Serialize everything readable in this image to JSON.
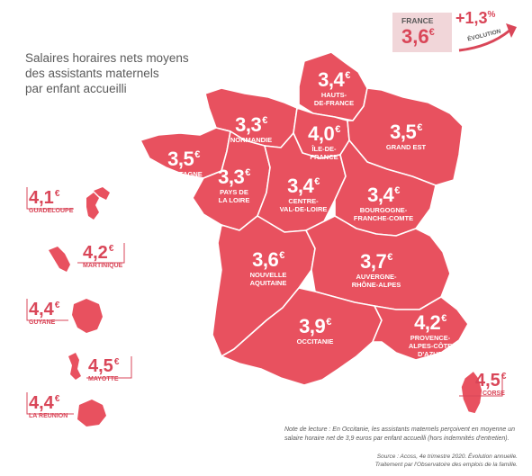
{
  "title_lines": [
    "Salaires horaires nets moyens",
    "des assistants maternels",
    "par enfant accueilli"
  ],
  "currency": "€",
  "national": {
    "label": "FRANCE",
    "value": "3,6",
    "evolution": "+1,3",
    "evolution_unit": "%",
    "evolution_label": "ÉVOLUTION"
  },
  "regions": [
    {
      "name": "HAUTS-DE-FRANCE",
      "lines": [
        "HAUTS-",
        "DE-FRANCE"
      ],
      "value": "3,4"
    },
    {
      "name": "NORMANDIE",
      "lines": [
        "NORMANDIE"
      ],
      "value": "3,3"
    },
    {
      "name": "ÎLE-DE-FRANCE",
      "lines": [
        "ÎLE-DE-",
        "FRANCE"
      ],
      "value": "4,0"
    },
    {
      "name": "GRAND EST",
      "lines": [
        "GRAND EST"
      ],
      "value": "3,5"
    },
    {
      "name": "BRETAGNE",
      "lines": [
        "BRETAGNE"
      ],
      "value": "3,5"
    },
    {
      "name": "PAYS DE LA LOIRE",
      "lines": [
        "PAYS DE",
        "LA LOIRE"
      ],
      "value": "3,3"
    },
    {
      "name": "CENTRE-VAL-DE-LOIRE",
      "lines": [
        "CENTRE-",
        "VAL-DE-LOIRE"
      ],
      "value": "3,4"
    },
    {
      "name": "BOURGOGNE-FRANCHE-COMTE",
      "lines": [
        "BOURGOGNE-",
        "FRANCHE-COMTE"
      ],
      "value": "3,4"
    },
    {
      "name": "NOUVELLE AQUITAINE",
      "lines": [
        "NOUVELLE",
        "AQUITAINE"
      ],
      "value": "3,6"
    },
    {
      "name": "AUVERGNE-RHÔNE-ALPES",
      "lines": [
        "AUVERGNE-",
        "RHÔNE-ALPES"
      ],
      "value": "3,7"
    },
    {
      "name": "OCCITANIE",
      "lines": [
        "OCCITANIE"
      ],
      "value": "3,9"
    },
    {
      "name": "PROVENCE-ALPES-CÔTE D'AZUR",
      "lines": [
        "PROVENCE-",
        "ALPES-CÔTE",
        "D'AZUR"
      ],
      "value": "4,2"
    },
    {
      "name": "CORSE",
      "lines": [
        "CORSE"
      ],
      "value": "4,5"
    }
  ],
  "overseas": [
    {
      "name": "GUADELOUPE",
      "value": "4,1"
    },
    {
      "name": "MARTINIQUE",
      "value": "4,2"
    },
    {
      "name": "GUYANE",
      "value": "4,4"
    },
    {
      "name": "MAYOTTE",
      "value": "4,5"
    },
    {
      "name": "LA REUNION",
      "value": "4,4"
    }
  ],
  "note": "Note de lecture : En Occitanie, les assistants maternels perçoivent en moyenne un salaire horaire net de 3,9 euros par enfant accueilli (hors indemnités d'entretien).",
  "source_lines": [
    "Source : Acoss, 4e trimestre 2020. Évolution annuelle.",
    "Traitement par l'Observatoire des emplois de la famille."
  ],
  "colors": {
    "region_fill": "#e8515f",
    "border": "#ffffff",
    "accent": "#d94658",
    "text_grey": "#5a5a5a"
  }
}
